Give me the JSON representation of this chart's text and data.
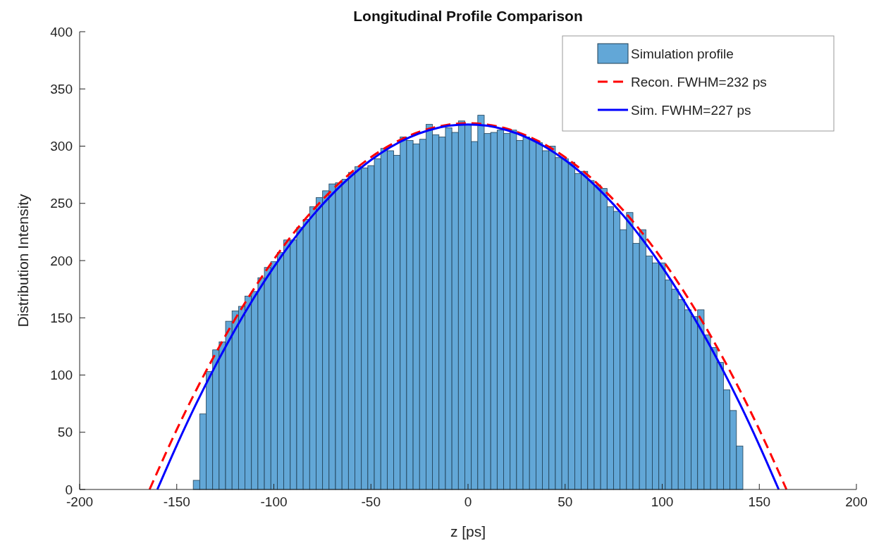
{
  "chart_data": {
    "type": "histogram",
    "title": "Longitudinal Profile Comparison",
    "xlabel": "z [ps]",
    "ylabel": "Distribution Intensity",
    "xlim": [
      -200,
      200
    ],
    "xticks": [
      -200,
      -150,
      -100,
      -50,
      0,
      50,
      100,
      150,
      200
    ],
    "ylim": [
      0,
      400
    ],
    "yticks": [
      0,
      50,
      100,
      150,
      200,
      250,
      300,
      350,
      400
    ],
    "grid": false,
    "legend": "top right",
    "series": [
      {
        "name": "Simulation profile",
        "color": "#62a7d7",
        "bins": [
          -141.5,
          -138.17,
          -134.84,
          -131.51,
          -128.18,
          -124.85,
          -121.52,
          -118.19,
          -114.86,
          -111.53,
          -108.2,
          -104.87,
          -101.54,
          -98.21,
          -94.88,
          -91.55,
          -88.22,
          -84.89,
          -81.56,
          -78.23,
          -74.9,
          -71.57,
          -68.24,
          -64.91,
          -61.58,
          -58.25,
          -54.92,
          -51.59,
          -48.26,
          -44.93,
          -41.6,
          -38.27,
          -34.94,
          -31.61,
          -28.28,
          -24.95,
          -21.62,
          -18.29,
          -14.96,
          -11.63,
          -8.3,
          -4.97,
          -1.64,
          1.69,
          5.02,
          8.35,
          11.68,
          15.01,
          18.34,
          21.67,
          25,
          28.33,
          31.66,
          34.99,
          38.32,
          41.65,
          44.98,
          48.31,
          51.64,
          54.97,
          58.3,
          61.63,
          64.96,
          68.29,
          71.62,
          74.95,
          78.28,
          81.61,
          84.94,
          88.27,
          91.6,
          94.93,
          98.26,
          101.59,
          104.92,
          108.25,
          111.58,
          114.91,
          118.24,
          121.57,
          124.9,
          128.23,
          131.56,
          134.89,
          138.22,
          141.55
        ],
        "values": [
          8,
          66,
          103,
          122,
          129,
          147,
          156,
          160,
          169,
          173,
          185,
          194,
          199,
          207,
          218,
          218,
          229,
          236,
          247,
          255,
          261,
          267,
          268,
          271,
          277,
          282,
          281,
          283,
          289,
          298,
          296,
          292,
          308,
          305,
          302,
          306,
          319,
          310,
          308,
          316,
          312,
          322,
          319,
          304,
          327,
          311,
          312,
          314,
          311,
          314,
          305,
          308,
          306,
          303,
          296,
          300,
          290,
          289,
          286,
          276,
          278,
          270,
          266,
          263,
          247,
          243,
          227,
          242,
          215,
          227,
          204,
          198,
          198,
          183,
          175,
          166,
          157,
          151,
          157,
          135,
          124,
          111,
          87,
          69,
          38
        ]
      },
      {
        "name": "Recon. FWHM=232 ps",
        "type": "line",
        "color": "#ff0000",
        "line_style": "dashed",
        "x": [
          -164,
          -150,
          -140,
          -130,
          -120,
          -110,
          -100,
          -90,
          -80,
          -70,
          -60,
          -50,
          -40,
          -30,
          -20,
          -10,
          0,
          10,
          20,
          30,
          40,
          50,
          60,
          70,
          80,
          90,
          100,
          110,
          120,
          130,
          140,
          150,
          164
        ],
        "values": [
          0,
          52.3,
          86.8,
          118.9,
          148.7,
          176.0,
          201.0,
          223.6,
          243.8,
          261.7,
          277.2,
          290.3,
          301.0,
          309.3,
          315.2,
          318.8,
          320,
          318.8,
          315.2,
          309.3,
          301.0,
          290.3,
          277.2,
          261.7,
          243.8,
          223.6,
          201.0,
          176.0,
          148.7,
          118.9,
          86.8,
          52.3,
          0
        ]
      },
      {
        "name": "Sim. FWHM=227 ps",
        "type": "line",
        "color": "#0000ff",
        "line_style": "solid",
        "x": [
          -160,
          -150,
          -140,
          -130,
          -120,
          -110,
          -100,
          -90,
          -80,
          -70,
          -60,
          -50,
          -40,
          -30,
          -20,
          -10,
          0,
          10,
          20,
          30,
          40,
          50,
          60,
          70,
          80,
          90,
          100,
          110,
          120,
          130,
          140,
          150,
          160
        ],
        "values": [
          0,
          38.6,
          74.8,
          108.4,
          139.6,
          168.2,
          194.4,
          218.1,
          239.3,
          257.9,
          274.1,
          287.8,
          299.1,
          307.8,
          314.0,
          317.8,
          319,
          317.8,
          314.0,
          307.8,
          299.1,
          287.8,
          274.1,
          257.9,
          239.3,
          218.1,
          194.4,
          168.2,
          139.6,
          108.4,
          74.8,
          38.6,
          0
        ]
      }
    ]
  }
}
